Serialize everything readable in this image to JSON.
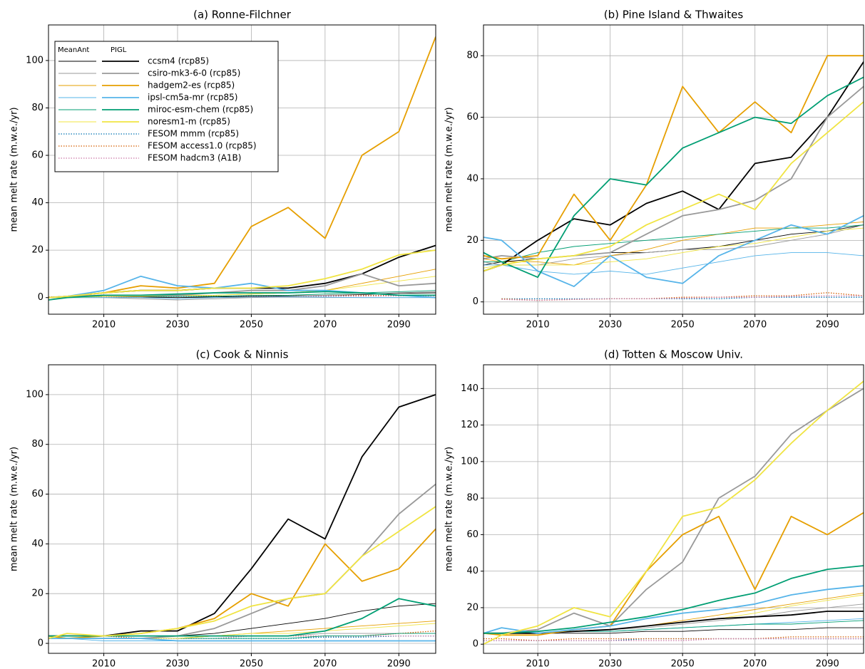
{
  "chart_data": [
    {
      "type": "line",
      "title": "(a) Ronne-Filchner",
      "ylabel": "mean melt rate (m.w.e./yr)",
      "x": [
        1995,
        2000,
        2010,
        2020,
        2030,
        2040,
        2050,
        2060,
        2070,
        2080,
        2090,
        2100
      ],
      "xlim": [
        1995,
        2100
      ],
      "xticks": [
        2010,
        2030,
        2050,
        2070,
        2090
      ],
      "ylim": [
        -7,
        115
      ],
      "yticks": [
        0,
        20,
        40,
        60,
        80,
        100
      ],
      "grid": true,
      "legend_headers": [
        "MeanAnt",
        "PIGL"
      ],
      "legend": "upper left",
      "series": [
        {
          "name": "ccsm4 (rcp85)",
          "color": "#000000",
          "meanant": [
            0,
            0.5,
            0.5,
            0.3,
            0,
            0.3,
            0.5,
            0.7,
            1,
            1.3,
            1.8,
            2
          ],
          "pigl": [
            0,
            0.5,
            2,
            3,
            3,
            4,
            4,
            4,
            6,
            10,
            17,
            22
          ]
        },
        {
          "name": "csiro-mk3-6-0 (rcp85)",
          "color": "#999999",
          "meanant": [
            0,
            0,
            0,
            -0.5,
            -1,
            -0.5,
            0,
            0.5,
            1,
            1.5,
            2,
            2.5
          ],
          "pigl": [
            0,
            0.5,
            1,
            1,
            1,
            2,
            3,
            3,
            5,
            10,
            5,
            6
          ]
        },
        {
          "name": "hadgem2-es (rcp85)",
          "color": "#E69F00",
          "meanant": [
            0,
            0.5,
            1,
            1,
            1,
            1,
            1.5,
            2,
            3,
            6,
            9,
            12
          ],
          "pigl": [
            0,
            0.5,
            2,
            5,
            4,
            6,
            30,
            38,
            25,
            60,
            70,
            110
          ]
        },
        {
          "name": "ipsl-cm5a-mr (rcp85)",
          "color": "#56B4E9",
          "meanant": [
            0,
            0,
            0,
            0,
            -0.5,
            0,
            0.3,
            0.3,
            0.2,
            0,
            0,
            0
          ],
          "pigl": [
            0,
            0.5,
            3,
            9,
            5,
            4,
            6,
            3,
            3,
            2,
            1,
            0
          ]
        },
        {
          "name": "miroc-esm-chem (rcp85)",
          "color": "#009E73",
          "meanant": [
            -1,
            0,
            0.5,
            0.5,
            0.5,
            0.5,
            1,
            1,
            1.5,
            2,
            2.5,
            3
          ],
          "pigl": [
            -1,
            0,
            1,
            1,
            1.5,
            2,
            2,
            2,
            2.5,
            2,
            1,
            1
          ]
        },
        {
          "name": "noresm1-m (rcp85)",
          "color": "#F0E442",
          "meanant": [
            0,
            0,
            0.5,
            0.5,
            1,
            1,
            1.5,
            2,
            3,
            5,
            7,
            9
          ],
          "pigl": [
            0,
            0.5,
            2,
            3,
            3,
            4,
            4,
            5,
            8,
            12,
            18,
            20
          ]
        },
        {
          "name": "FESOM mmm (rcp85)",
          "color": "#0072B2",
          "style": "dotted",
          "values": [
            0.3,
            0.3,
            0.3,
            0.4,
            0.4,
            0.5,
            0.5,
            0.6,
            0.6,
            0.7,
            0.8,
            0.8
          ]
        },
        {
          "name": "FESOM access1.0 (rcp85)",
          "color": "#D55E00",
          "style": "dotted",
          "values": [
            0.3,
            0.4,
            0.4,
            0.5,
            0.5,
            0.6,
            0.6,
            0.7,
            0.8,
            0.9,
            1,
            1
          ]
        },
        {
          "name": "FESOM hadcm3 (A1B)",
          "color": "#CC79A7",
          "style": "dotted",
          "values": [
            0.2,
            0.3,
            0.3,
            0.3,
            0.4,
            0.4,
            0.5,
            0.5,
            0.6,
            0.6,
            0.7,
            0.7
          ]
        }
      ]
    },
    {
      "type": "line",
      "title": "(b) Pine Island & Thwaites",
      "ylabel": "mean melt rate (m.w.e./yr)",
      "x": [
        1995,
        2000,
        2010,
        2020,
        2030,
        2040,
        2050,
        2060,
        2070,
        2080,
        2090,
        2100
      ],
      "xlim": [
        1995,
        2100
      ],
      "xticks": [
        2010,
        2030,
        2050,
        2070,
        2090
      ],
      "ylim": [
        -4,
        90
      ],
      "yticks": [
        0,
        20,
        40,
        60,
        80
      ],
      "grid": true,
      "series": [
        {
          "color": "#000000",
          "meanant": [
            12,
            13,
            14,
            15,
            16,
            16,
            17,
            18,
            20,
            22,
            23,
            25
          ],
          "pigl": [
            10,
            12,
            20,
            27,
            25,
            32,
            36,
            30,
            45,
            47,
            60,
            78
          ]
        },
        {
          "color": "#999999",
          "meanant": [
            13,
            12,
            12,
            14,
            15,
            16,
            17,
            17,
            18,
            20,
            22,
            25
          ],
          "pigl": [
            14,
            15,
            14,
            15,
            16,
            22,
            28,
            30,
            33,
            40,
            60,
            70
          ]
        },
        {
          "color": "#E69F00",
          "meanant": [
            14,
            13,
            13,
            12,
            15,
            17,
            20,
            22,
            24,
            24,
            25,
            26
          ],
          "pigl": [
            15,
            14,
            15,
            35,
            20,
            38,
            70,
            55,
            65,
            55,
            80,
            80
          ]
        },
        {
          "color": "#56B4E9",
          "meanant": [
            12,
            12,
            10,
            9,
            10,
            9,
            11,
            13,
            15,
            16,
            16,
            15
          ],
          "pigl": [
            21,
            20,
            10,
            5,
            15,
            8,
            6,
            15,
            20,
            25,
            22,
            28
          ]
        },
        {
          "color": "#009E73",
          "meanant": [
            13,
            13,
            16,
            18,
            19,
            20,
            21,
            22,
            23,
            24,
            24,
            25
          ],
          "pigl": [
            16,
            13,
            8,
            28,
            40,
            38,
            50,
            55,
            60,
            58,
            67,
            73
          ]
        },
        {
          "color": "#F0E442",
          "meanant": [
            11,
            12,
            12,
            12,
            13,
            14,
            16,
            18,
            19,
            21,
            23,
            24
          ],
          "pigl": [
            10,
            12,
            14,
            15,
            18,
            25,
            30,
            35,
            30,
            45,
            55,
            65
          ]
        },
        {
          "color": "#0072B2",
          "style": "dotted",
          "values": [
            null,
            1,
            1,
            1,
            1,
            1,
            1,
            1,
            1.5,
            1.5,
            1.5,
            1.5
          ]
        },
        {
          "color": "#D55E00",
          "style": "dotted",
          "values": [
            null,
            1,
            0.5,
            0.8,
            1,
            1,
            1.5,
            1.5,
            2,
            2,
            3,
            2
          ]
        },
        {
          "color": "#CC79A7",
          "style": "dotted",
          "values": [
            null,
            0.8,
            0.5,
            0.8,
            1,
            1,
            1.2,
            1.5,
            1.5,
            1.8,
            2,
            2
          ]
        }
      ]
    },
    {
      "type": "line",
      "title": "(c) Cook & Ninnis",
      "ylabel": "mean melt rate (m.w.e./yr)",
      "x": [
        1995,
        2000,
        2010,
        2020,
        2030,
        2040,
        2050,
        2060,
        2070,
        2080,
        2090,
        2100
      ],
      "xlim": [
        1995,
        2100
      ],
      "xticks": [
        2010,
        2030,
        2050,
        2070,
        2090
      ],
      "ylim": [
        -4,
        112
      ],
      "yticks": [
        0,
        20,
        40,
        60,
        80,
        100
      ],
      "grid": true,
      "series": [
        {
          "color": "#000000",
          "meanant": [
            3,
            2,
            2,
            2,
            3,
            4,
            6,
            8,
            10,
            13,
            15,
            16
          ],
          "pigl": [
            3,
            3,
            3,
            5,
            5,
            12,
            30,
            50,
            42,
            75,
            95,
            100
          ]
        },
        {
          "color": "#999999",
          "meanant": [
            3,
            2,
            2,
            2,
            2,
            3,
            3,
            3,
            4,
            4,
            4,
            4
          ],
          "pigl": [
            3,
            2,
            2,
            2,
            3,
            6,
            12,
            18,
            20,
            35,
            52,
            64
          ]
        },
        {
          "color": "#E69F00",
          "meanant": [
            3,
            2,
            2,
            2,
            2,
            3,
            4,
            5,
            6,
            7,
            8,
            9
          ],
          "pigl": [
            3,
            2,
            3,
            4,
            6,
            10,
            20,
            15,
            40,
            25,
            30,
            46
          ]
        },
        {
          "color": "#56B4E9",
          "meanant": [
            2,
            2,
            1,
            1,
            1,
            1,
            1,
            1,
            1,
            1,
            1,
            1
          ],
          "pigl": [
            2,
            2,
            2,
            2,
            1,
            1,
            1,
            1,
            1,
            1,
            1,
            1
          ]
        },
        {
          "color": "#009E73",
          "meanant": [
            3,
            2,
            2,
            2,
            2,
            2,
            2,
            2,
            3,
            3,
            4,
            4
          ],
          "pigl": [
            3,
            3,
            3,
            3,
            3,
            3,
            3,
            3,
            5,
            10,
            18,
            15
          ]
        },
        {
          "color": "#F0E442",
          "meanant": [
            2,
            2,
            2,
            2,
            2,
            3,
            4,
            4,
            5,
            6,
            7,
            8
          ],
          "pigl": [
            2,
            4,
            3,
            4,
            6,
            9,
            15,
            18,
            20,
            35,
            45,
            55
          ]
        },
        {
          "color": "#0072B2",
          "style": "dotted",
          "values": [
            2,
            2,
            2,
            2,
            2,
            2,
            2,
            2,
            2.5,
            2.5,
            3,
            3
          ]
        },
        {
          "color": "#D55E00",
          "style": "dotted",
          "values": [
            3,
            3,
            3,
            2,
            3,
            3,
            3,
            3,
            3,
            3,
            4,
            5
          ]
        },
        {
          "color": "#CC79A7",
          "style": "dotted",
          "values": [
            2,
            2,
            2,
            2,
            2,
            2,
            3,
            3,
            3,
            3,
            3,
            3
          ]
        }
      ]
    },
    {
      "type": "line",
      "title": "(d) Totten & Moscow Univ.",
      "ylabel": "mean melt rate (m.w.e./yr)",
      "x": [
        1995,
        2000,
        2010,
        2020,
        2030,
        2040,
        2050,
        2060,
        2070,
        2080,
        2090,
        2100
      ],
      "xlim": [
        1995,
        2100
      ],
      "xticks": [
        2010,
        2030,
        2050,
        2070,
        2090
      ],
      "ylim": [
        -5,
        153
      ],
      "yticks": [
        0,
        20,
        40,
        60,
        80,
        100,
        120,
        140
      ],
      "grid": true,
      "series": [
        {
          "color": "#000000",
          "meanant": [
            6,
            6,
            6,
            6,
            6,
            7,
            7,
            8,
            8,
            8,
            9,
            9
          ],
          "pigl": [
            6,
            6,
            6,
            7,
            8,
            10,
            12,
            14,
            15,
            16,
            18,
            18
          ]
        },
        {
          "color": "#999999",
          "meanant": [
            6,
            6,
            6,
            7,
            8,
            9,
            11,
            13,
            15,
            18,
            20,
            22
          ],
          "pigl": [
            6,
            6,
            8,
            17,
            10,
            30,
            45,
            80,
            92,
            115,
            128,
            140
          ]
        },
        {
          "color": "#E69F00",
          "meanant": [
            6,
            6,
            6,
            7,
            8,
            10,
            13,
            16,
            19,
            22,
            25,
            28
          ],
          "pigl": [
            6,
            5,
            5,
            8,
            10,
            40,
            60,
            70,
            30,
            70,
            60,
            72
          ]
        },
        {
          "color": "#56B4E9",
          "meanant": [
            6,
            6,
            6,
            7,
            7,
            8,
            9,
            10,
            11,
            12,
            13,
            14
          ],
          "pigl": [
            6,
            9,
            6,
            8,
            10,
            14,
            17,
            19,
            22,
            27,
            30,
            32
          ]
        },
        {
          "color": "#009E73",
          "meanant": [
            6,
            6,
            6,
            7,
            7,
            8,
            9,
            10,
            11,
            11,
            12,
            13
          ],
          "pigl": [
            6,
            6,
            7,
            9,
            12,
            15,
            19,
            24,
            28,
            36,
            41,
            43
          ]
        },
        {
          "color": "#F0E442",
          "meanant": [
            6,
            6,
            6,
            7,
            8,
            10,
            12,
            14,
            17,
            21,
            24,
            27
          ],
          "pigl": [
            0,
            5,
            10,
            20,
            15,
            40,
            70,
            75,
            90,
            110,
            128,
            144
          ]
        },
        {
          "color": "#0072B2",
          "style": "dotted",
          "values": [
            2,
            2,
            2,
            2,
            2,
            3,
            3,
            3,
            3,
            3,
            3,
            3
          ]
        },
        {
          "color": "#D55E00",
          "style": "dotted",
          "values": [
            3,
            3,
            2,
            3,
            3,
            3,
            3,
            3,
            3,
            4,
            4,
            4
          ]
        },
        {
          "color": "#CC79A7",
          "style": "dotted",
          "values": [
            2,
            2,
            2,
            2,
            2,
            2,
            2,
            3,
            3,
            3,
            3,
            3
          ]
        }
      ]
    }
  ]
}
